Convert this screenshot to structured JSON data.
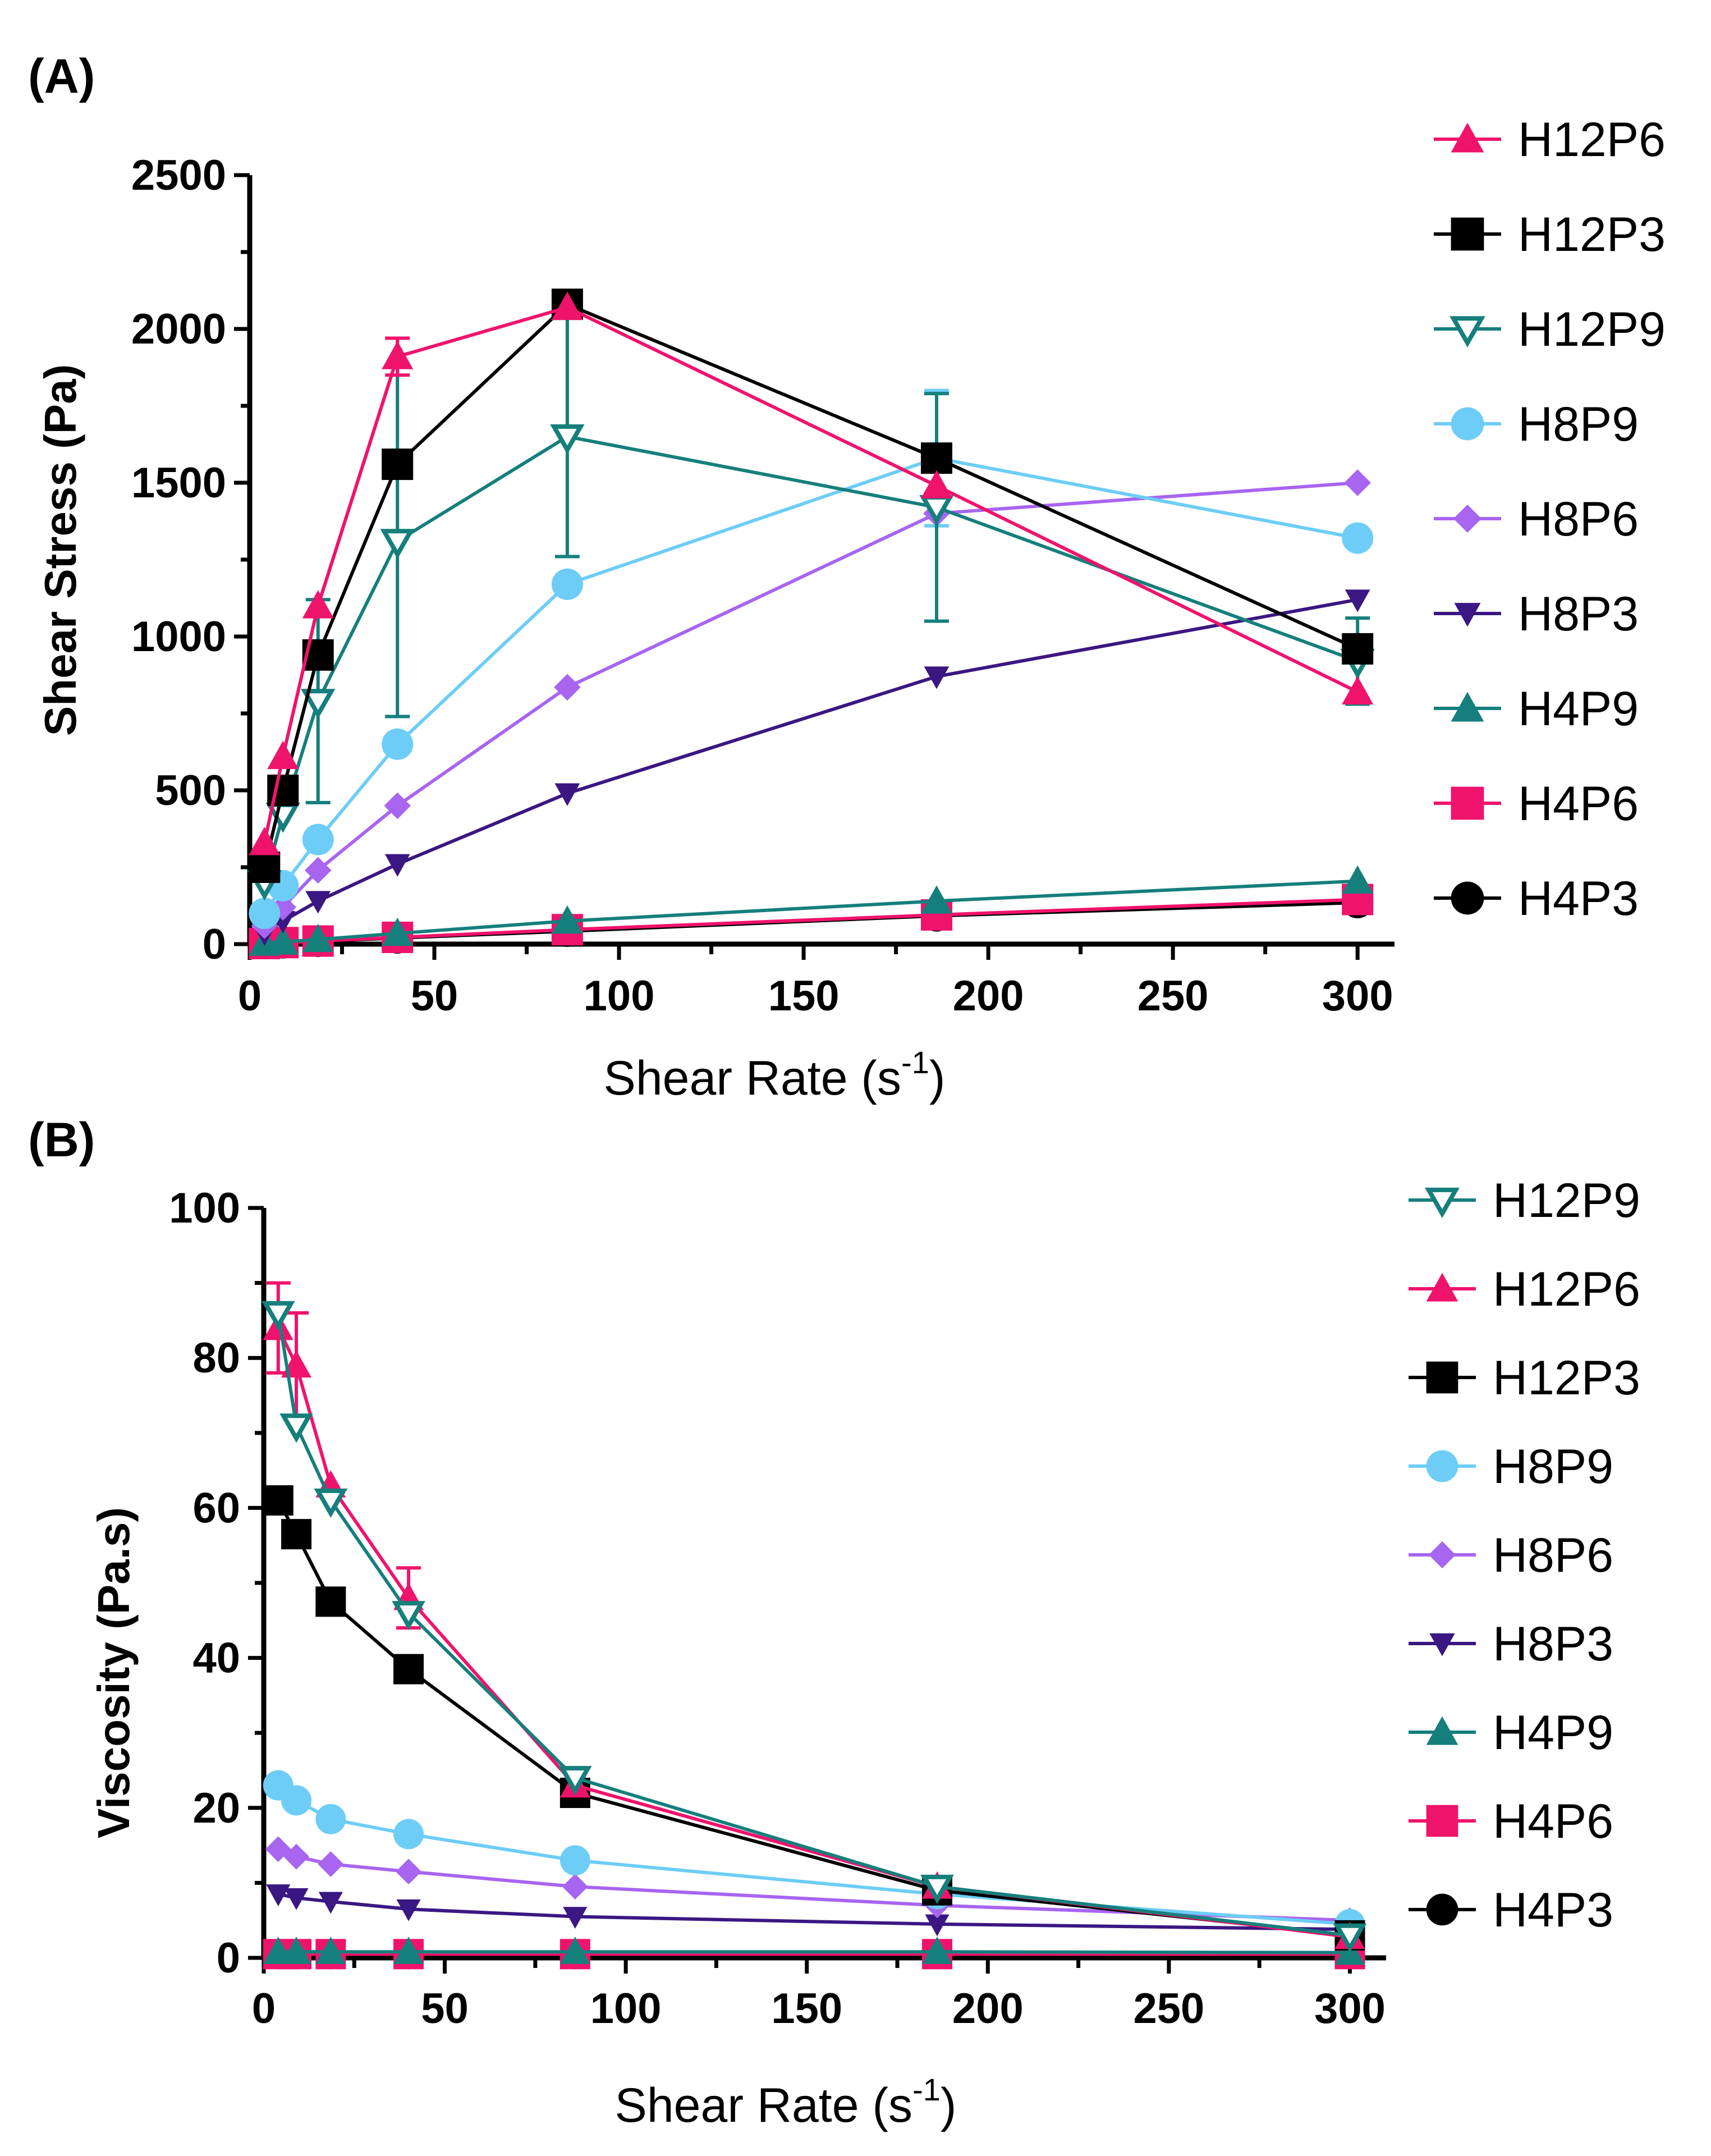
{
  "chart_data": [
    {
      "type": "line",
      "panel_label": "(A)",
      "title": "",
      "xlabel": "Shear Rate (s",
      "xlabel_sup": "-1",
      "xlabel_close": ")",
      "ylabel": "Shear  Stress (Pa)",
      "xlim": [
        0,
        310
      ],
      "ylim": [
        0,
        2500
      ],
      "xticks": [
        0,
        50,
        100,
        150,
        200,
        250,
        300
      ],
      "yticks": [
        0,
        500,
        1000,
        1500,
        2000,
        2500
      ],
      "x_tick_labels": [
        "0",
        "50",
        "100",
        "150",
        "200",
        "250",
        "300"
      ],
      "y_tick_labels": [
        "0",
        "500",
        "1000",
        "1500",
        "2000",
        "2500"
      ],
      "legend_position": "right",
      "x": [
        4,
        9,
        18.5,
        40,
        86,
        186,
        300
      ],
      "series": [
        {
          "name": "H12P6",
          "marker": "triangle-up",
          "color": "#f0136b",
          "values": [
            330,
            610,
            1100,
            1910,
            2070,
            1490,
            820
          ],
          "errors": [
            0,
            0,
            0,
            60,
            0,
            0,
            0
          ]
        },
        {
          "name": "H12P3",
          "marker": "square",
          "color": "#000000",
          "values": [
            250,
            500,
            940,
            1560,
            2080,
            1580,
            960
          ],
          "errors": [
            0,
            0,
            0,
            0,
            0,
            0,
            0
          ]
        },
        {
          "name": "H12P9",
          "marker": "triangle-down-open",
          "color": "#157f7c",
          "values": [
            200,
            420,
            790,
            1310,
            1650,
            1420,
            920
          ],
          "errors": [
            0,
            0,
            330,
            570,
            390,
            370,
            140
          ]
        },
        {
          "name": "H8P9",
          "marker": "circle",
          "color": "#6dcdf6",
          "values": [
            100,
            190,
            340,
            650,
            1170,
            1580,
            1320
          ],
          "errors": [
            0,
            0,
            0,
            0,
            0,
            220,
            0
          ]
        },
        {
          "name": "H8P6",
          "marker": "diamond",
          "color": "#a765f0",
          "values": [
            60,
            120,
            240,
            450,
            835,
            1400,
            1500
          ],
          "errors": [
            0,
            0,
            0,
            0,
            0,
            0,
            0
          ]
        },
        {
          "name": "H8P3",
          "marker": "triangle-down",
          "color": "#3a1782",
          "values": [
            35,
            75,
            140,
            260,
            490,
            870,
            1120
          ],
          "errors": [
            0,
            0,
            0,
            0,
            0,
            0,
            0
          ]
        },
        {
          "name": "H4P9",
          "marker": "triangle-up",
          "color": "#157f7c",
          "values": [
            3,
            7,
            15,
            35,
            75,
            140,
            205
          ],
          "errors": [
            0,
            0,
            0,
            0,
            0,
            0,
            0
          ]
        },
        {
          "name": "H4P6",
          "marker": "square",
          "color": "#f0136b",
          "values": [
            2,
            5,
            10,
            22,
            47,
            95,
            145
          ],
          "errors": [
            0,
            0,
            0,
            0,
            0,
            0,
            0
          ]
        },
        {
          "name": "H4P3",
          "marker": "circle",
          "color": "#000000",
          "values": [
            2,
            4,
            9,
            20,
            42,
            92,
            135
          ],
          "errors": [
            0,
            0,
            0,
            0,
            0,
            0,
            0
          ]
        }
      ]
    },
    {
      "type": "line",
      "panel_label": "(B)",
      "title": "",
      "xlabel": "Shear Rate (s",
      "xlabel_sup": "-1",
      "xlabel_close": ")",
      "ylabel": "Viscosity (Pa.s)",
      "xlim": [
        0,
        310
      ],
      "ylim": [
        0,
        100
      ],
      "xticks": [
        0,
        50,
        100,
        150,
        200,
        250,
        300
      ],
      "yticks": [
        0,
        20,
        40,
        60,
        80,
        100
      ],
      "x_tick_labels": [
        "0",
        "50",
        "100",
        "150",
        "200",
        "250",
        "300"
      ],
      "y_tick_labels": [
        "0",
        "20",
        "40",
        "60",
        "80",
        "100"
      ],
      "legend_position": "right",
      "x": [
        4,
        9,
        18.5,
        40,
        86,
        186,
        300
      ],
      "series": [
        {
          "name": "H12P9",
          "marker": "triangle-down-open",
          "color": "#157f7c",
          "values": [
            86,
            71,
            61,
            46,
            24,
            9.5,
            3
          ],
          "errors": [
            0,
            0,
            0,
            0,
            0,
            0,
            0
          ]
        },
        {
          "name": "H12P6",
          "marker": "triangle-up",
          "color": "#f0136b",
          "values": [
            84,
            79,
            63,
            48,
            23,
            9.5,
            2.8
          ],
          "errors": [
            6,
            7,
            0,
            4,
            0,
            0,
            0
          ]
        },
        {
          "name": "H12P3",
          "marker": "square",
          "color": "#000000",
          "values": [
            61,
            56.5,
            47.5,
            38.5,
            22,
            9,
            3
          ],
          "errors": [
            0,
            0,
            0,
            0,
            0,
            0,
            0
          ]
        },
        {
          "name": "H8P9",
          "marker": "circle",
          "color": "#6dcdf6",
          "values": [
            23,
            21,
            18.5,
            16.5,
            13,
            8.5,
            4.5
          ],
          "errors": [
            0,
            0,
            0,
            0,
            0,
            0,
            0
          ]
        },
        {
          "name": "H8P6",
          "marker": "diamond",
          "color": "#a765f0",
          "values": [
            14.5,
            13.5,
            12.5,
            11.5,
            9.5,
            7,
            5
          ],
          "errors": [
            0,
            0,
            0,
            0,
            0,
            0,
            0
          ]
        },
        {
          "name": "H8P3",
          "marker": "triangle-down",
          "color": "#3a1782",
          "values": [
            8.5,
            8,
            7.5,
            6.5,
            5.5,
            4.5,
            3.8
          ],
          "errors": [
            0,
            0,
            0,
            0,
            0,
            0,
            0
          ]
        },
        {
          "name": "H4P9",
          "marker": "triangle-up",
          "color": "#157f7c",
          "values": [
            0.8,
            0.8,
            0.8,
            0.8,
            0.8,
            0.8,
            0.7
          ],
          "errors": [
            0,
            0,
            0,
            0,
            0,
            0,
            0
          ]
        },
        {
          "name": "H4P6",
          "marker": "square",
          "color": "#f0136b",
          "values": [
            0.5,
            0.5,
            0.5,
            0.5,
            0.5,
            0.5,
            0.5
          ],
          "errors": [
            0,
            0,
            0,
            0,
            0,
            0,
            0
          ]
        },
        {
          "name": "H4P3",
          "marker": "circle",
          "color": "#000000",
          "values": [
            0.5,
            0.5,
            0.5,
            0.5,
            0.5,
            0.5,
            0.5
          ],
          "errors": [
            0,
            0,
            0,
            0,
            0,
            0,
            0
          ]
        }
      ]
    }
  ]
}
